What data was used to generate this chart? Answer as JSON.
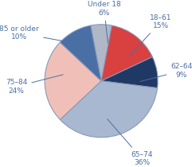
{
  "slices": [
    {
      "label": "Under 18",
      "value": 6,
      "color": "#b0b8c8"
    },
    {
      "label": "18–61",
      "value": 15,
      "color": "#d94040"
    },
    {
      "label": "62–64",
      "value": 9,
      "color": "#1f3864"
    },
    {
      "label": "65–74",
      "value": 36,
      "color": "#a8b8d0"
    },
    {
      "label": "75–84",
      "value": 24,
      "color": "#f0c0b8"
    },
    {
      "label": "85 or older",
      "value": 10,
      "color": "#4a6fa5"
    }
  ],
  "label_fontsize": 6.5,
  "pct_fontsize": 6.5,
  "edge_color": "#8899bb",
  "edge_linewidth": 0.8,
  "background_color": "#ffffff",
  "label_color": "#4a6fa5"
}
